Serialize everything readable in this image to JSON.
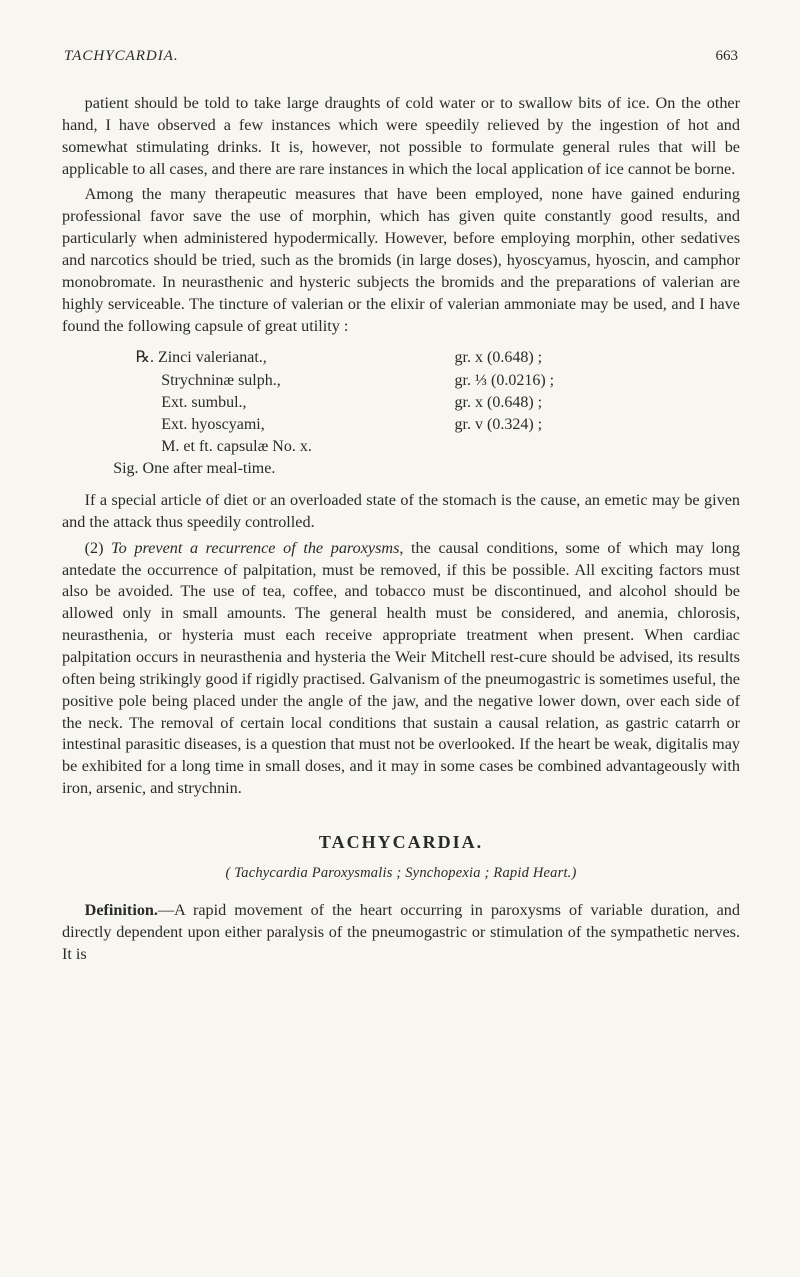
{
  "runningHead": {
    "title": "TACHYCARDIA.",
    "pageNumber": "663"
  },
  "paragraphs": {
    "p1": "patient should be told to take large draughts of cold water or to swallow bits of ice. On the other hand, I have observed a few instances which were speedily relieved by the ingestion of hot and somewhat stimulating drinks. It is, however, not possible to formulate general rules that will be applicable to all cases, and there are rare instances in which the local application of ice cannot be borne.",
    "p2": "Among the many therapeutic measures that have been employed, none have gained enduring professional favor save the use of morphin, which has given quite constantly good results, and particularly when administered hypodermically. However, before employing morphin, other sedatives and narcotics should be tried, such as the bromids (in large doses), hyoscyamus, hyoscin, and camphor monobromate. In neurasthenic and hysteric subjects the bromids and the preparations of valerian are highly serviceable. The tincture of valerian or the elixir of valerian ammoniate may be used, and I have found the following capsule of great utility :"
  },
  "prescription": {
    "rows": [
      {
        "left": "℞. Zinci valerianat.,",
        "right": "gr. x (0.648) ;"
      },
      {
        "left": "Strychninæ sulph.,",
        "right": "gr. ⅓ (0.0216) ;"
      },
      {
        "left": "Ext. sumbul.,",
        "right": "gr. x (0.648) ;"
      },
      {
        "left": "Ext. hyoscyami,",
        "right": "gr. v (0.324) ;"
      },
      {
        "left": "M. et ft. capsulæ No. x.",
        "right": ""
      }
    ],
    "sig": "Sig. One after meal-time."
  },
  "paragraphs2": {
    "p3": "If a special article of diet or an overloaded state of the stomach is the cause, an emetic may be given and the attack thus speedily controlled.",
    "p4a": "(2) ",
    "p4b": "To prevent a recurrence of the paroxysms",
    "p4c": ", the causal conditions, some of which may long antedate the occurrence of palpitation, must be removed, if this be possible. All exciting factors must also be avoided. The use of tea, coffee, and tobacco must be discontinued, and alcohol should be allowed only in small amounts. The general health must be considered, and anemia, chlorosis, neurasthenia, or hysteria must each receive appropriate treatment when present. When cardiac palpitation occurs in neurasthenia and hysteria the Weir Mitchell rest-cure should be advised, its results often being strikingly good if rigidly practised. Galvanism of the pneumogastric is sometimes useful, the positive pole being placed under the angle of the jaw, and the negative lower down, over each side of the neck. The removal of certain local conditions that sustain a causal relation, as gastric catarrh or intestinal parasitic diseases, is a question that must not be overlooked. If the heart be weak, digitalis may be exhibited for a long time in small doses, and it may in some cases be combined advantageously with iron, arsenic, and strychnin."
  },
  "section": {
    "heading": "TACHYCARDIA.",
    "subtitle": "( Tachycardia Paroxysmalis ; Synchopexia ; Rapid Heart.)"
  },
  "definition": {
    "runin": "Definition.",
    "text": "—A rapid movement of the heart occurring in paroxysms of variable duration, and directly dependent upon either paralysis of the pneumogastric or stimulation of the sympathetic nerves. It is"
  }
}
